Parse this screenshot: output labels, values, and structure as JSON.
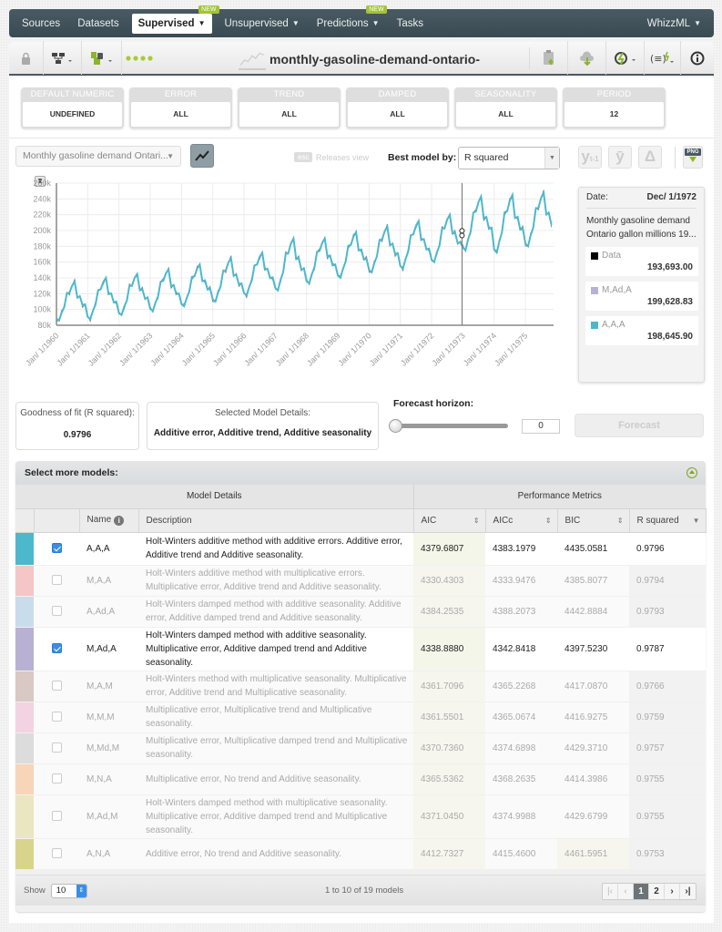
{
  "nav": {
    "items": [
      {
        "label": "Sources"
      },
      {
        "label": "Datasets"
      },
      {
        "label": "Supervised",
        "badge": "NEW",
        "active": true
      },
      {
        "label": "Unsupervised"
      },
      {
        "label": "Predictions",
        "badge": "NEW"
      },
      {
        "label": "Tasks"
      }
    ],
    "right": "WhizzML"
  },
  "toolbar": {
    "title": "monthly-gasoline-demand-ontario-",
    "icons": [
      "lock-icon",
      "model-tree-icon",
      "model-types-icon",
      "progress-dots-icon",
      "clipboard-download-icon",
      "cloud-download-icon",
      "actions-icon",
      "whizzml-icon",
      "info-icon"
    ]
  },
  "filters": [
    {
      "header": "DEFAULT NUMERIC",
      "value": "UNDEFINED"
    },
    {
      "header": "ERROR",
      "value": "ALL"
    },
    {
      "header": "TREND",
      "value": "ALL"
    },
    {
      "header": "DAMPED",
      "value": "ALL"
    },
    {
      "header": "SEASONALITY",
      "value": "ALL"
    },
    {
      "header": "PERIOD",
      "value": "12"
    }
  ],
  "controls": {
    "series_select": "Monthly gasoline demand Ontari...",
    "esc": "esc",
    "releases": "Releases view",
    "best_label": "Best model by:",
    "best_value": "R squared",
    "btn_yt1": "y",
    "btn_ybar": "ȳ",
    "btn_delta": "Δ",
    "png": "PNG"
  },
  "chart_data": {
    "type": "line",
    "title": "",
    "xlabel": "",
    "ylabel": "",
    "ylim": [
      80000,
      260000
    ],
    "y_ticks": [
      "80k",
      "100k",
      "120k",
      "140k",
      "160k",
      "180k",
      "200k",
      "220k",
      "240k",
      "260k"
    ],
    "x_ticks": [
      "Jan/ 1/1960",
      "Jan/ 1/1961",
      "Jan/ 1/1962",
      "Jan/ 1/1963",
      "Jan/ 1/1964",
      "Jan/ 1/1965",
      "Jan/ 1/1966",
      "Jan/ 1/1967",
      "Jan/ 1/1968",
      "Jan/ 1/1969",
      "Jan/ 1/1970",
      "Jan/ 1/1971",
      "Jan/ 1/1972",
      "Jan/ 1/1973",
      "Jan/ 1/1974",
      "Jan/ 1/1975"
    ],
    "grid": true,
    "hover_date": "Dec/ 1/1972",
    "series": [
      {
        "name": "Data",
        "color": "#000000",
        "yearly_min": [
          86000,
          88000,
          93000,
          98000,
          104000,
          110000,
          118000,
          124000,
          133000,
          140000,
          147000,
          152000,
          160000,
          175000,
          172000,
          180000
        ],
        "yearly_max": [
          135000,
          140000,
          145000,
          151000,
          157000,
          165000,
          172000,
          190000,
          190000,
          198000,
          205000,
          212000,
          220000,
          243000,
          245000,
          248000
        ]
      },
      {
        "name": "M,Ad,A",
        "color": "#b9b1d4"
      },
      {
        "name": "A,A,A",
        "color": "#4db8cc"
      }
    ]
  },
  "tooltip": {
    "date_label": "Date:",
    "date_value": "Dec/ 1/1972",
    "description": "Monthly gasoline demand Ontario gallon millions 19...",
    "values": [
      {
        "name": "Data",
        "color": "#000000",
        "value": "193,693.00"
      },
      {
        "name": "M,Ad,A",
        "color": "#b9b1d4",
        "value": "199,628.83"
      },
      {
        "name": "A,A,A",
        "color": "#4db8cc",
        "value": "198,645.90"
      }
    ]
  },
  "fit": {
    "label": "Goodness of fit (R squared):",
    "value": "0.9796"
  },
  "selected_model": {
    "label": "Selected Model Details:",
    "value": "Additive error, Additive trend, Additive seasonality"
  },
  "forecast": {
    "label": "Forecast horizon:",
    "value": "0",
    "button": "Forecast"
  },
  "models_panel": {
    "title": "Select more models:",
    "group_details": "Model Details",
    "group_metrics": "Performance Metrics",
    "col_name": "Name",
    "col_description": "Description",
    "col_aic": "AIC",
    "col_aicc": "AICc",
    "col_bic": "BIC",
    "col_rsq": "R squared",
    "rows": [
      {
        "color": "#4db8cc",
        "checked": true,
        "name": "A,A,A",
        "description": "Holt-Winters additive method with additive errors. Additive error, Additive trend and Additive seasonality.",
        "aic": "4379.6807",
        "aicc": "4383.1979",
        "bic": "4435.0581",
        "rsq": "0.9796"
      },
      {
        "color": "#f4c6c6",
        "checked": false,
        "name": "M,A,A",
        "description": "Holt-Winters additive method with multiplicative errors. Multiplicative error, Additive trend and Additive seasonality.",
        "aic": "4330.4303",
        "aicc": "4333.9476",
        "bic": "4385.8077",
        "rsq": "0.9794"
      },
      {
        "color": "#c9dcec",
        "checked": false,
        "name": "A,Ad,A",
        "description": "Holt-Winters damped method with additive seasonality. Additive error, Additive damped trend and Additive seasonality.",
        "aic": "4384.2535",
        "aicc": "4388.2073",
        "bic": "4442.8884",
        "rsq": "0.9793"
      },
      {
        "color": "#b9b1d4",
        "checked": true,
        "name": "M,Ad,A",
        "description": "Holt-Winters damped method with additive seasonality. Multiplicative error, Additive damped trend and Additive seasonality.",
        "aic": "4338.8880",
        "aicc": "4342.8418",
        "bic": "4397.5230",
        "rsq": "0.9787"
      },
      {
        "color": "#d9c8c4",
        "checked": false,
        "name": "M,A,M",
        "description": "Holt-Winters method with multiplicative seasonality. Multiplicative error, Additive trend and Multiplicative seasonality.",
        "aic": "4361.7096",
        "aicc": "4365.2268",
        "bic": "4417.0870",
        "rsq": "0.9766"
      },
      {
        "color": "#f3d3e1",
        "checked": false,
        "name": "M,M,M",
        "description": "Multiplicative error, Multiplicative trend and Multiplicative seasonality.",
        "aic": "4361.5501",
        "aicc": "4365.0674",
        "bic": "4416.9275",
        "rsq": "0.9759"
      },
      {
        "color": "#dcdcdc",
        "checked": false,
        "name": "M,Md,M",
        "description": "Multiplicative error, Multiplicative damped trend and Multiplicative seasonality.",
        "aic": "4370.7360",
        "aicc": "4374.6898",
        "bic": "4429.3710",
        "rsq": "0.9757"
      },
      {
        "color": "#f8d5b8",
        "checked": false,
        "name": "M,N,A",
        "description": "Multiplicative error, No trend and Additive seasonality.",
        "aic": "4365.5362",
        "aicc": "4368.2635",
        "bic": "4414.3986",
        "rsq": "0.9755"
      },
      {
        "color": "#ebe6c2",
        "checked": false,
        "name": "M,Ad,M",
        "description": "Holt-Winters damped method with multiplicative seasonality. Multiplicative error, Additive damped trend and Multiplicative seasonality.",
        "aic": "4371.0450",
        "aicc": "4374.9988",
        "bic": "4429.6799",
        "rsq": "0.9755"
      },
      {
        "color": "#d9d48c",
        "checked": false,
        "name": "A,N,A",
        "description": "Additive error, No trend and Additive seasonality.",
        "aic": "4412.7327",
        "aicc": "4415.4600",
        "bic": "4461.5951",
        "rsq": "0.9753"
      }
    ],
    "footer": {
      "show_label": "Show",
      "show_value": "10",
      "count": "1 to 10 of 19 models",
      "pages": [
        "1",
        "2"
      ],
      "current_page": "1"
    }
  }
}
